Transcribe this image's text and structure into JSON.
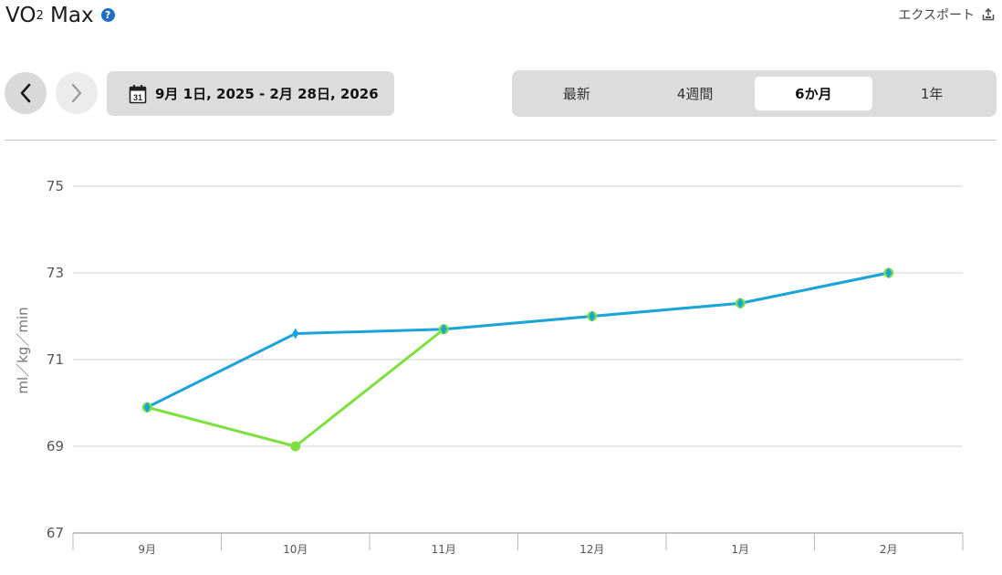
{
  "header": {
    "title_main": "VO",
    "title_sub": "2",
    "title_rest": " Max",
    "help_glyph": "?",
    "export_label": "エクスポート"
  },
  "toolbar": {
    "date_range": "9月 1日, 2025 - 2月 28日, 2026",
    "calendar_day": "31"
  },
  "range_tabs": [
    {
      "label": "最新",
      "active": false
    },
    {
      "label": "4週間",
      "active": false
    },
    {
      "label": "6か月",
      "active": true
    },
    {
      "label": "1年",
      "active": false
    }
  ],
  "colors": {
    "series_blue": "#1aa3dc",
    "series_green": "#7ee03f",
    "grid": "#d0d0d0",
    "help_icon": "#1f6fc4"
  },
  "chart_data": {
    "type": "line",
    "categories": [
      "9月",
      "10月",
      "11月",
      "12月",
      "1月",
      "2月"
    ],
    "ylabel": "ml／kg／min",
    "ylim": [
      67,
      75
    ],
    "yticks": [
      67,
      69,
      71,
      73,
      75
    ],
    "grid": true,
    "series": [
      {
        "values": [
          69.9,
          71.6,
          71.7,
          72.0,
          72.3,
          73.0
        ],
        "marker": "diamond",
        "color": "#1aa3dc"
      },
      {
        "values": [
          69.9,
          69.0,
          71.7,
          72.0,
          72.3,
          73.0
        ],
        "marker": "circle",
        "color": "#7ee03f"
      }
    ]
  }
}
